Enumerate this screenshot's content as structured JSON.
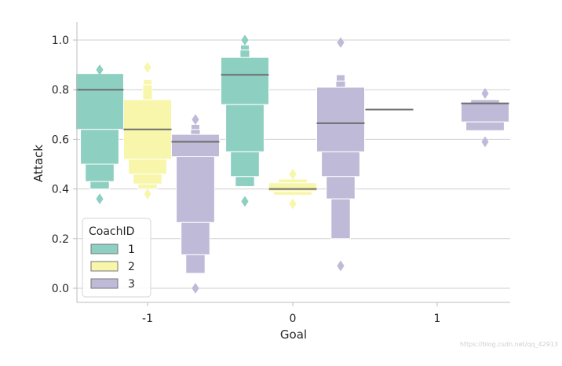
{
  "chart_data": {
    "type": "boxenplot",
    "title": "",
    "xlabel": "Goal",
    "ylabel": "Attack",
    "categories": [
      "-1",
      "0",
      "1"
    ],
    "ylim": [
      -0.06,
      1.07
    ],
    "yticks": [
      0.0,
      0.2,
      0.4,
      0.6,
      0.8,
      1.0
    ],
    "ytick_labels": [
      "0.0",
      "0.2",
      "0.4",
      "0.6",
      "0.8",
      "1.0"
    ],
    "grid": "horizontal",
    "legend": {
      "title": "CoachID",
      "position": "bottom-left",
      "entries": [
        "1",
        "2",
        "3"
      ]
    },
    "colors": {
      "1": "#8dcfc1",
      "2": "#f8f6aa",
      "3": "#bfbad8",
      "median": "#6e6e6e",
      "grid": "#cfcfcf",
      "axis": "#bdbdbd"
    },
    "series": [
      {
        "name": "1",
        "category": "-1",
        "median": 0.8,
        "boxes": [
          [
            0.64,
            0.865
          ],
          [
            0.5,
            0.64
          ],
          [
            0.43,
            0.5
          ],
          [
            0.4,
            0.43
          ]
        ],
        "outliers": [
          0.36,
          0.88
        ]
      },
      {
        "name": "2",
        "category": "-1",
        "median": 0.64,
        "boxes": [
          [
            0.52,
            0.76
          ],
          [
            0.46,
            0.52
          ],
          [
            0.42,
            0.46
          ],
          [
            0.4,
            0.42
          ],
          [
            0.76,
            0.82
          ],
          [
            0.82,
            0.84
          ]
        ],
        "outliers": [
          0.38,
          0.89
        ]
      },
      {
        "name": "3",
        "category": "-1",
        "median": 0.59,
        "boxes": [
          [
            0.53,
            0.62
          ],
          [
            0.265,
            0.53
          ],
          [
            0.135,
            0.265
          ],
          [
            0.06,
            0.135
          ],
          [
            0.62,
            0.64
          ],
          [
            0.64,
            0.66
          ]
        ],
        "outliers": [
          0.0,
          0.68
        ]
      },
      {
        "name": "1",
        "category": "0",
        "median": 0.86,
        "boxes": [
          [
            0.74,
            0.93
          ],
          [
            0.55,
            0.74
          ],
          [
            0.45,
            0.55
          ],
          [
            0.41,
            0.45
          ],
          [
            0.93,
            0.96
          ],
          [
            0.96,
            0.98
          ]
        ],
        "outliers": [
          0.35,
          1.0
        ]
      },
      {
        "name": "2",
        "category": "0",
        "median": 0.4,
        "boxes": [
          [
            0.39,
            0.425
          ],
          [
            0.375,
            0.39
          ],
          [
            0.425,
            0.44
          ]
        ],
        "outliers": [
          0.34,
          0.46
        ]
      },
      {
        "name": "3",
        "category": "0",
        "median": 0.665,
        "boxes": [
          [
            0.55,
            0.81
          ],
          [
            0.45,
            0.55
          ],
          [
            0.36,
            0.45
          ],
          [
            0.2,
            0.36
          ],
          [
            0.81,
            0.835
          ],
          [
            0.835,
            0.86
          ]
        ],
        "outliers": [
          0.09,
          0.99
        ]
      },
      {
        "name": "1",
        "category": "1",
        "median": 0.72,
        "boxes": [],
        "outliers": []
      },
      {
        "name": "3",
        "category": "1",
        "median": 0.745,
        "boxes": [
          [
            0.67,
            0.745
          ],
          [
            0.635,
            0.67
          ],
          [
            0.745,
            0.76
          ]
        ],
        "outliers": [
          0.59,
          0.785
        ]
      }
    ]
  },
  "watermark": "https://blog.csdn.net/qq_42913"
}
